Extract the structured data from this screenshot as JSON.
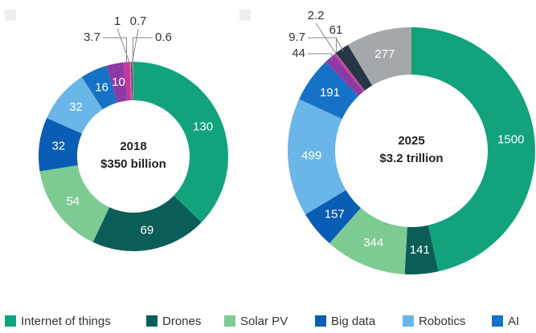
{
  "chart_data": [
    {
      "type": "pie",
      "title": "2018",
      "subtitle": "$350 billion",
      "categories": [
        "Internet of things",
        "Drones",
        "Solar PV",
        "Big data",
        "Robotics",
        "AI",
        null,
        null,
        null,
        null,
        null
      ],
      "values": [
        130,
        69,
        54,
        32,
        32,
        16,
        10,
        3.7,
        1,
        0.7,
        0.6
      ],
      "colors": [
        "#12a37d",
        "#0b5e57",
        "#7dcb93",
        "#0a5db5",
        "#6bb6e8",
        "#1572c7",
        "#8e3aa4",
        "#c2389a",
        "#e06aa3",
        "#253746",
        "#a5a8aa"
      ]
    },
    {
      "type": "pie",
      "title": "2025",
      "subtitle": "$3.2 trillion",
      "categories": [
        "Internet of things",
        "Drones",
        "Solar PV",
        "Big data",
        "Robotics",
        "AI",
        null,
        null,
        null,
        null,
        null
      ],
      "values": [
        1500,
        141,
        344,
        157,
        499,
        191,
        44,
        9.7,
        2.2,
        61,
        277
      ],
      "colors": [
        "#12a37d",
        "#0b5e57",
        "#7dcb93",
        "#0a5db5",
        "#6bb6e8",
        "#1572c7",
        "#8e3aa4",
        "#c2389a",
        "#e06aa3",
        "#253746",
        "#a5a8aa"
      ]
    }
  ]
}
